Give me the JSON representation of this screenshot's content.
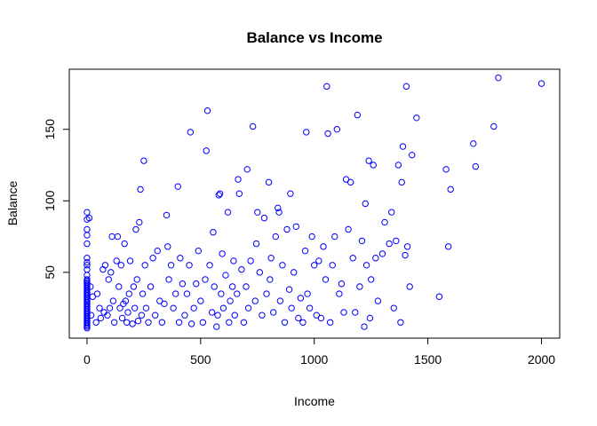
{
  "chart_data": {
    "type": "scatter",
    "title": "Balance vs Income",
    "xlabel": "Income",
    "ylabel": "Balance",
    "xlim": [
      -78,
      2080
    ],
    "ylim": [
      4,
      192
    ],
    "xticks": [
      0,
      500,
      1000,
      1500,
      2000
    ],
    "yticks": [
      50,
      100,
      150
    ],
    "grid": false,
    "legend": "none",
    "point_color": "#0000ff",
    "points": [
      [
        0,
        92
      ],
      [
        0,
        87
      ],
      [
        0,
        80
      ],
      [
        0,
        76
      ],
      [
        0,
        70
      ],
      [
        0,
        60
      ],
      [
        0,
        57
      ],
      [
        0,
        55
      ],
      [
        0,
        52
      ],
      [
        0,
        48
      ],
      [
        0,
        45
      ],
      [
        0,
        44
      ],
      [
        0,
        43
      ],
      [
        0,
        42
      ],
      [
        0,
        41
      ],
      [
        0,
        40
      ],
      [
        0,
        39
      ],
      [
        0,
        38
      ],
      [
        0,
        37
      ],
      [
        0,
        36
      ],
      [
        0,
        35
      ],
      [
        0,
        34
      ],
      [
        0,
        33
      ],
      [
        0,
        32
      ],
      [
        0,
        31
      ],
      [
        0,
        30
      ],
      [
        0,
        29
      ],
      [
        0,
        28
      ],
      [
        0,
        27
      ],
      [
        0,
        26
      ],
      [
        0,
        25
      ],
      [
        0,
        24
      ],
      [
        0,
        23
      ],
      [
        0,
        22
      ],
      [
        0,
        21
      ],
      [
        0,
        20
      ],
      [
        0,
        19
      ],
      [
        0,
        18
      ],
      [
        0,
        17
      ],
      [
        0,
        16
      ],
      [
        0,
        15
      ],
      [
        0,
        14
      ],
      [
        0,
        13
      ],
      [
        0,
        12
      ],
      [
        0,
        11
      ],
      [
        10,
        88
      ],
      [
        15,
        40
      ],
      [
        18,
        20
      ],
      [
        25,
        33
      ],
      [
        40,
        15
      ],
      [
        45,
        35
      ],
      [
        55,
        25
      ],
      [
        60,
        18
      ],
      [
        70,
        52
      ],
      [
        75,
        22
      ],
      [
        80,
        55
      ],
      [
        90,
        20
      ],
      [
        95,
        45
      ],
      [
        100,
        25
      ],
      [
        105,
        50
      ],
      [
        110,
        75
      ],
      [
        115,
        30
      ],
      [
        120,
        15
      ],
      [
        130,
        58
      ],
      [
        135,
        75
      ],
      [
        140,
        40
      ],
      [
        145,
        25
      ],
      [
        150,
        55
      ],
      [
        155,
        18
      ],
      [
        160,
        28
      ],
      [
        165,
        70
      ],
      [
        170,
        30
      ],
      [
        175,
        15
      ],
      [
        180,
        22
      ],
      [
        185,
        35
      ],
      [
        190,
        58
      ],
      [
        200,
        14
      ],
      [
        205,
        40
      ],
      [
        210,
        25
      ],
      [
        215,
        80
      ],
      [
        220,
        45
      ],
      [
        225,
        16
      ],
      [
        230,
        85
      ],
      [
        235,
        108
      ],
      [
        240,
        20
      ],
      [
        245,
        35
      ],
      [
        250,
        128
      ],
      [
        255,
        55
      ],
      [
        260,
        25
      ],
      [
        270,
        15
      ],
      [
        280,
        40
      ],
      [
        290,
        60
      ],
      [
        300,
        20
      ],
      [
        310,
        65
      ],
      [
        320,
        30
      ],
      [
        330,
        15
      ],
      [
        340,
        28
      ],
      [
        350,
        90
      ],
      [
        355,
        68
      ],
      [
        360,
        45
      ],
      [
        370,
        55
      ],
      [
        380,
        25
      ],
      [
        390,
        35
      ],
      [
        400,
        110
      ],
      [
        405,
        15
      ],
      [
        410,
        60
      ],
      [
        420,
        42
      ],
      [
        430,
        20
      ],
      [
        440,
        35
      ],
      [
        450,
        55
      ],
      [
        455,
        148
      ],
      [
        460,
        14
      ],
      [
        470,
        25
      ],
      [
        480,
        42
      ],
      [
        490,
        65
      ],
      [
        500,
        30
      ],
      [
        510,
        15
      ],
      [
        520,
        45
      ],
      [
        525,
        135
      ],
      [
        530,
        163
      ],
      [
        540,
        55
      ],
      [
        550,
        22
      ],
      [
        555,
        78
      ],
      [
        560,
        40
      ],
      [
        570,
        12
      ],
      [
        575,
        20
      ],
      [
        580,
        104
      ],
      [
        585,
        105
      ],
      [
        590,
        35
      ],
      [
        595,
        63
      ],
      [
        600,
        25
      ],
      [
        610,
        48
      ],
      [
        620,
        92
      ],
      [
        625,
        15
      ],
      [
        630,
        30
      ],
      [
        640,
        40
      ],
      [
        645,
        58
      ],
      [
        650,
        20
      ],
      [
        660,
        35
      ],
      [
        665,
        115
      ],
      [
        670,
        105
      ],
      [
        680,
        52
      ],
      [
        690,
        15
      ],
      [
        700,
        40
      ],
      [
        705,
        122
      ],
      [
        710,
        25
      ],
      [
        720,
        58
      ],
      [
        730,
        152
      ],
      [
        740,
        30
      ],
      [
        745,
        70
      ],
      [
        750,
        92
      ],
      [
        760,
        50
      ],
      [
        770,
        20
      ],
      [
        780,
        88
      ],
      [
        790,
        35
      ],
      [
        800,
        113
      ],
      [
        805,
        45
      ],
      [
        810,
        60
      ],
      [
        820,
        22
      ],
      [
        830,
        75
      ],
      [
        840,
        95
      ],
      [
        845,
        92
      ],
      [
        850,
        30
      ],
      [
        860,
        55
      ],
      [
        870,
        15
      ],
      [
        880,
        80
      ],
      [
        890,
        38
      ],
      [
        895,
        105
      ],
      [
        900,
        25
      ],
      [
        910,
        50
      ],
      [
        920,
        82
      ],
      [
        930,
        18
      ],
      [
        940,
        32
      ],
      [
        950,
        15
      ],
      [
        960,
        65
      ],
      [
        965,
        148
      ],
      [
        970,
        35
      ],
      [
        980,
        25
      ],
      [
        990,
        75
      ],
      [
        1000,
        55
      ],
      [
        1010,
        20
      ],
      [
        1020,
        58
      ],
      [
        1030,
        18
      ],
      [
        1040,
        68
      ],
      [
        1050,
        45
      ],
      [
        1055,
        180
      ],
      [
        1060,
        147
      ],
      [
        1070,
        15
      ],
      [
        1080,
        55
      ],
      [
        1090,
        75
      ],
      [
        1100,
        150
      ],
      [
        1110,
        35
      ],
      [
        1120,
        42
      ],
      [
        1130,
        22
      ],
      [
        1140,
        115
      ],
      [
        1150,
        80
      ],
      [
        1160,
        113
      ],
      [
        1170,
        60
      ],
      [
        1180,
        22
      ],
      [
        1190,
        160
      ],
      [
        1200,
        40
      ],
      [
        1210,
        72
      ],
      [
        1220,
        12
      ],
      [
        1225,
        98
      ],
      [
        1230,
        55
      ],
      [
        1240,
        128
      ],
      [
        1245,
        18
      ],
      [
        1250,
        45
      ],
      [
        1260,
        125
      ],
      [
        1270,
        60
      ],
      [
        1280,
        30
      ],
      [
        1300,
        63
      ],
      [
        1310,
        85
      ],
      [
        1330,
        70
      ],
      [
        1340,
        92
      ],
      [
        1350,
        25
      ],
      [
        1360,
        72
      ],
      [
        1370,
        125
      ],
      [
        1380,
        15
      ],
      [
        1385,
        113
      ],
      [
        1390,
        138
      ],
      [
        1400,
        62
      ],
      [
        1405,
        180
      ],
      [
        1410,
        68
      ],
      [
        1420,
        40
      ],
      [
        1430,
        132
      ],
      [
        1450,
        158
      ],
      [
        1550,
        33
      ],
      [
        1580,
        122
      ],
      [
        1590,
        68
      ],
      [
        1600,
        108
      ],
      [
        1700,
        140
      ],
      [
        1710,
        124
      ],
      [
        1790,
        152
      ],
      [
        1810,
        186
      ],
      [
        2000,
        182
      ]
    ]
  }
}
